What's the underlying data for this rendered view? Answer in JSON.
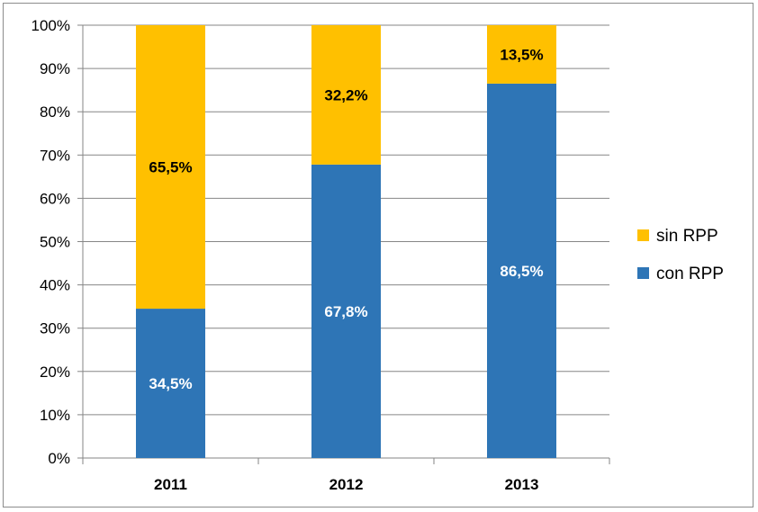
{
  "chart_data": {
    "type": "bar",
    "stacked": true,
    "categories": [
      "2011",
      "2012",
      "2013"
    ],
    "series": [
      {
        "name": "con RPP",
        "values": [
          34.5,
          67.8,
          86.5
        ],
        "labels": [
          "34,5%",
          "67,8%",
          "86,5%"
        ],
        "color": "#2e75b6",
        "label_color": "#ffffff"
      },
      {
        "name": "sin RPP",
        "values": [
          65.5,
          32.2,
          13.5
        ],
        "labels": [
          "65,5%",
          "32,2%",
          "13,5%"
        ],
        "color": "#ffc000",
        "label_color": "#000000"
      }
    ],
    "ylim": [
      0,
      100
    ],
    "yticks": [
      "0%",
      "10%",
      "20%",
      "30%",
      "40%",
      "50%",
      "60%",
      "70%",
      "80%",
      "90%",
      "100%"
    ],
    "grid": true,
    "gridline_color": "#868686",
    "legend": {
      "placement": "right",
      "order": [
        "sin RPP",
        "con RPP"
      ]
    },
    "title": "",
    "xlabel": "",
    "ylabel": ""
  }
}
